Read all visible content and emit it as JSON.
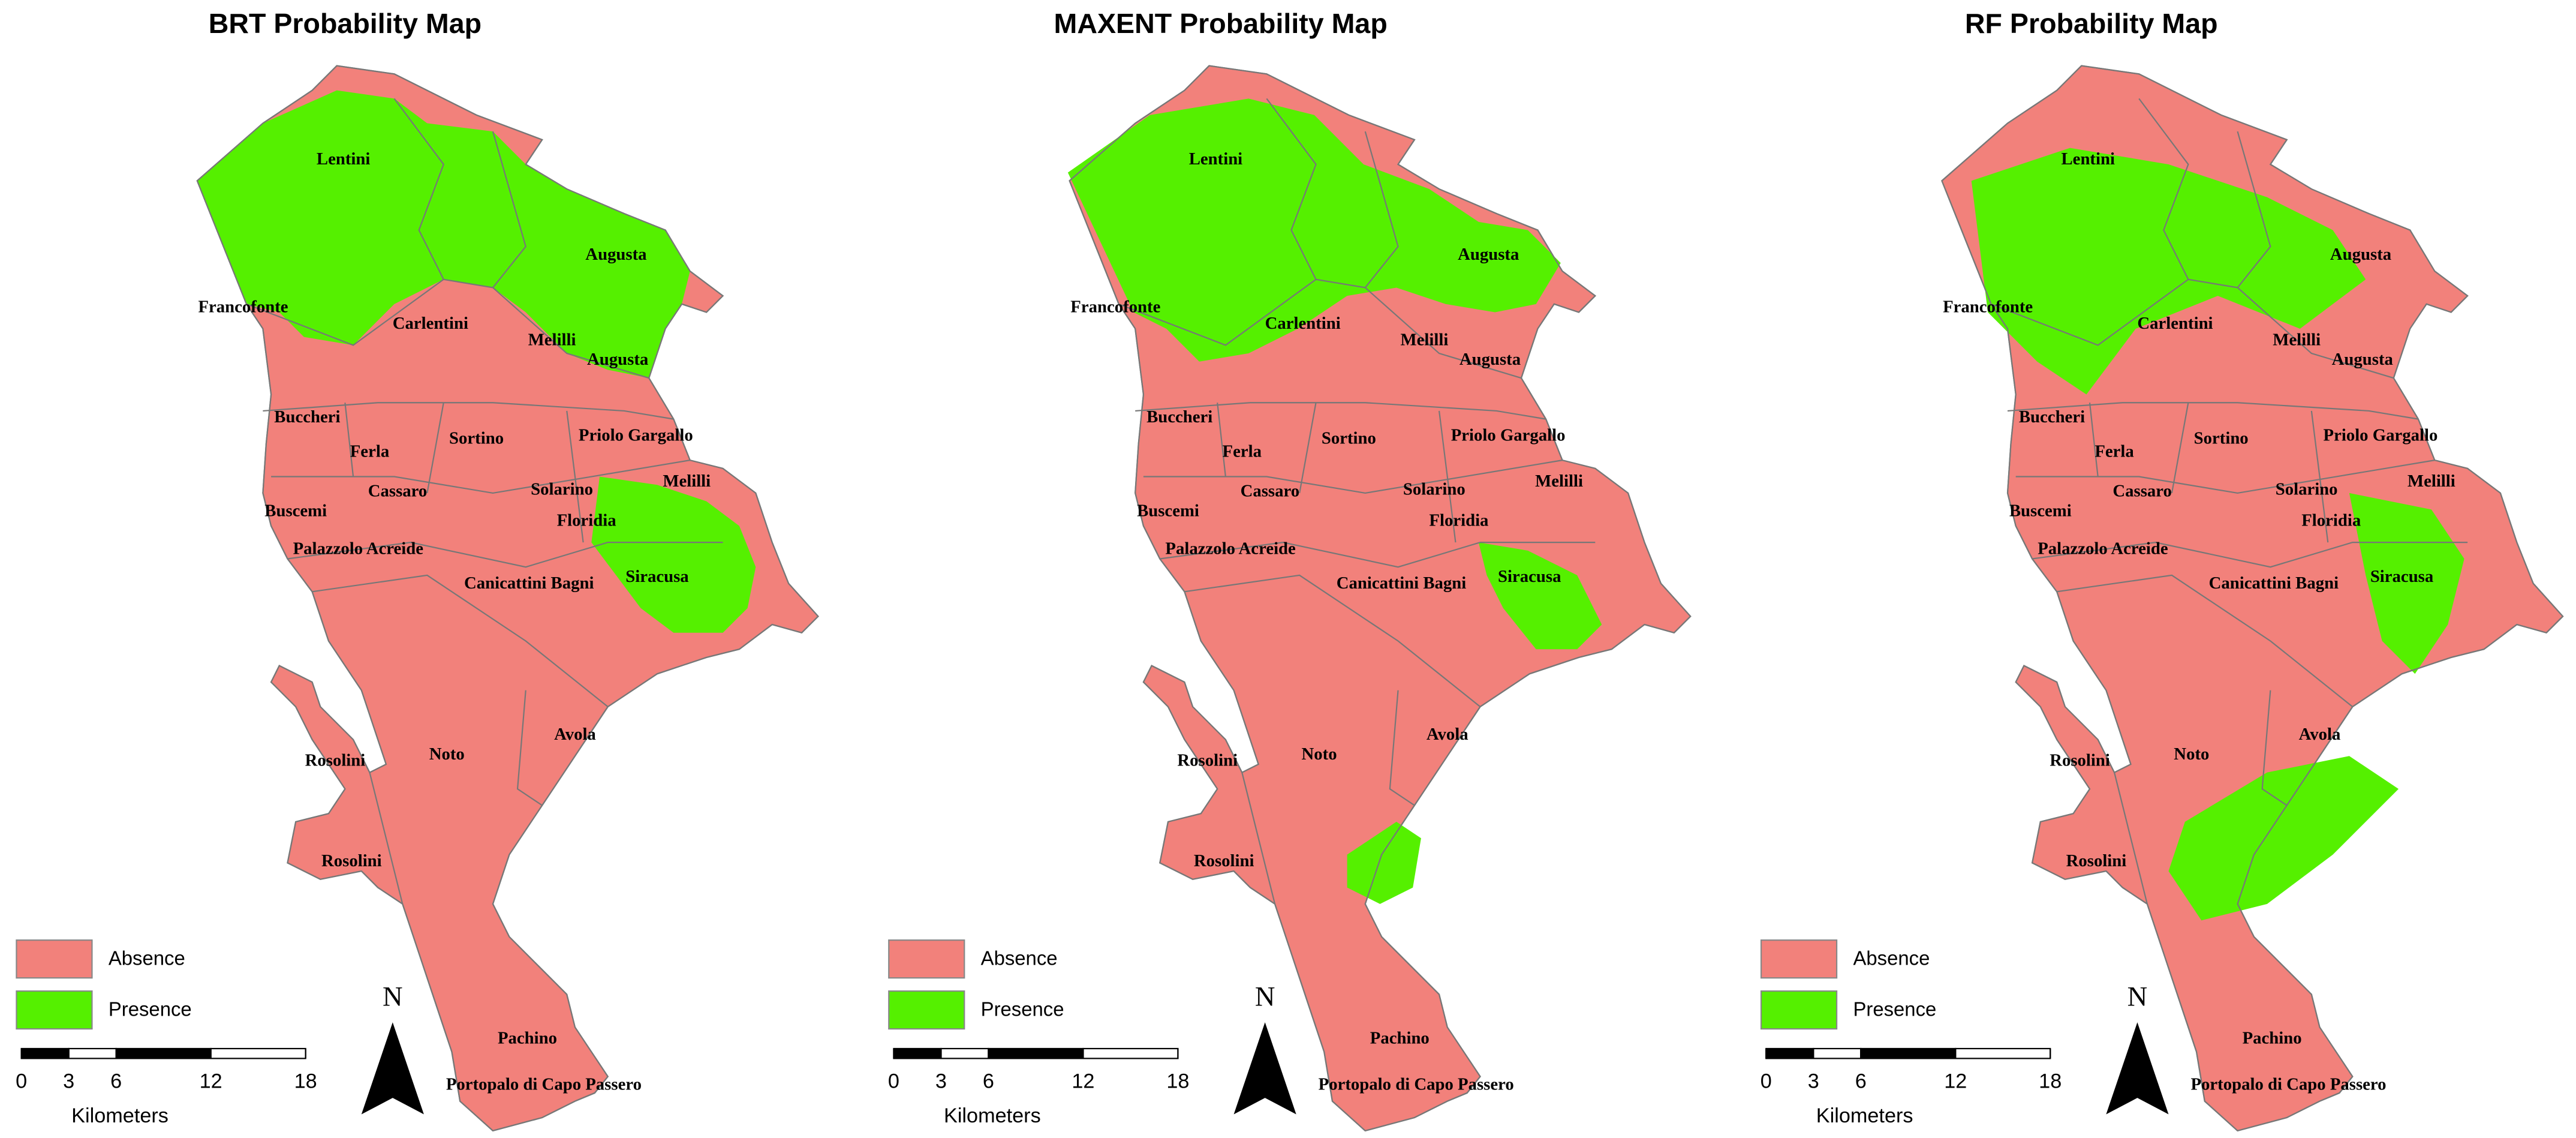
{
  "panels": [
    {
      "title": "BRT Probability Map",
      "legend": [
        {
          "label": "Absence",
          "color": "#f2817b"
        },
        {
          "label": "Presence",
          "color": "#55f000"
        }
      ],
      "north": "N",
      "scale_bar": {
        "ticks": [
          0,
          3,
          6,
          12,
          18
        ],
        "unit": "Kilometers"
      },
      "places": [
        "Lentini",
        "Augusta",
        "Francofonte",
        "Carlentini",
        "Melilli",
        "Augusta",
        "Buccheri",
        "Ferla",
        "Sortino",
        "Priolo Gargallo",
        "Cassaro",
        "Solarino",
        "Melilli",
        "Buscemi",
        "Floridia",
        "Palazzolo Acreide",
        "Canicattini Bagni",
        "Siracusa",
        "Avola",
        "Noto",
        "Rosolini",
        "Rosolini",
        "Pachino",
        "Portopalo di Capo Passero"
      ]
    },
    {
      "title": "MAXENT Probability Map",
      "legend": [
        {
          "label": "Absence",
          "color": "#f2817b"
        },
        {
          "label": "Presence",
          "color": "#55f000"
        }
      ],
      "north": "N",
      "scale_bar": {
        "ticks": [
          0,
          3,
          6,
          12,
          18
        ],
        "unit": "Kilometers"
      },
      "places": [
        "Lentini",
        "Augusta",
        "Francofonte",
        "Carlentini",
        "Melilli",
        "Augusta",
        "Buccheri",
        "Ferla",
        "Sortino",
        "Priolo Gargallo",
        "Cassaro",
        "Solarino",
        "Melilli",
        "Buscemi",
        "Floridia",
        "Palazzolo Acreide",
        "Canicattini Bagni",
        "Siracusa",
        "Avola",
        "Noto",
        "Rosolini",
        "Rosolini",
        "Pachino",
        "Portopalo di Capo Passero"
      ]
    },
    {
      "title": "RF Probability Map",
      "legend": [
        {
          "label": "Absence",
          "color": "#f2817b"
        },
        {
          "label": "Presence",
          "color": "#55f000"
        }
      ],
      "north": "N",
      "scale_bar": {
        "ticks": [
          0,
          3,
          6,
          12,
          18
        ],
        "unit": "Kilometers"
      },
      "places": [
        "Lentini",
        "Augusta",
        "Francofonte",
        "Carlentini",
        "Melilli",
        "Augusta",
        "Buccheri",
        "Ferla",
        "Sortino",
        "Priolo Gargallo",
        "Cassaro",
        "Solarino",
        "Melilli",
        "Buscemi",
        "Floridia",
        "Palazzolo Acreide",
        "Canicattini Bagni",
        "Siracusa",
        "Avola",
        "Noto",
        "Rosolini",
        "Rosolini",
        "Pachino",
        "Portopalo di Capo Passero"
      ]
    }
  ]
}
